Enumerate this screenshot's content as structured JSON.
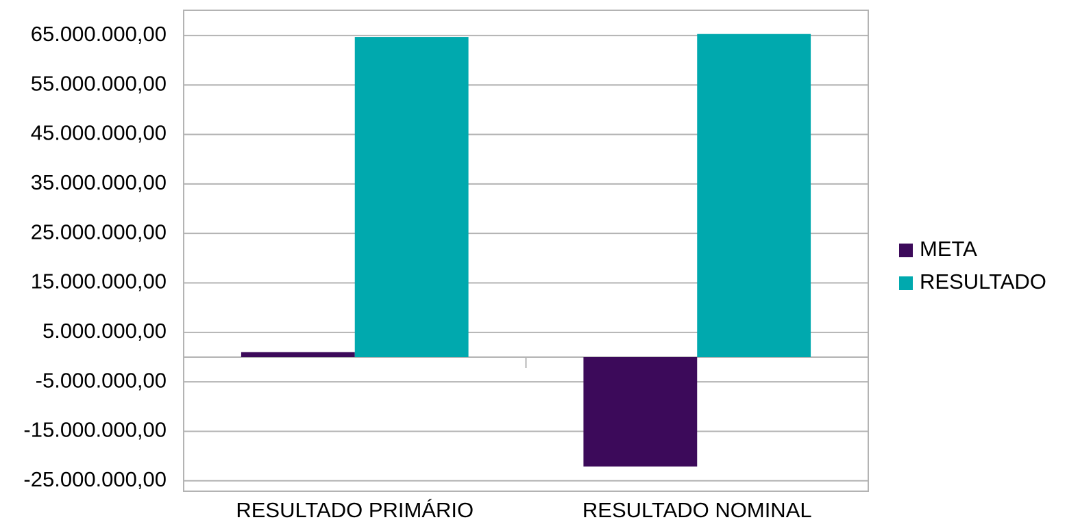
{
  "chart_data": {
    "type": "bar",
    "categories": [
      "RESULTADO PRIMÁRIO",
      "RESULTADO NOMINAL"
    ],
    "series": [
      {
        "name": "META",
        "color": "#3c0a5a",
        "values": [
          1000000,
          -22100000
        ]
      },
      {
        "name": "RESULTADO",
        "color": "#00a9ae",
        "values": [
          64700000,
          65300000
        ]
      }
    ],
    "ylim": [
      -27100000,
      70100000
    ],
    "yticks": [
      {
        "value": -25000000,
        "label": "-25.000.000,00"
      },
      {
        "value": -15000000,
        "label": "-15.000.000,00"
      },
      {
        "value": -5000000,
        "label": "-5.000.000,00"
      },
      {
        "value": 5000000,
        "label": "5.000.000,00"
      },
      {
        "value": 15000000,
        "label": "15.000.000,00"
      },
      {
        "value": 25000000,
        "label": "25.000.000,00"
      },
      {
        "value": 35000000,
        "label": "35.000.000,00"
      },
      {
        "value": 45000000,
        "label": "45.000.000,00"
      },
      {
        "value": 55000000,
        "label": "55.000.000,00"
      },
      {
        "value": 65000000,
        "label": "65.000.000,00"
      }
    ],
    "grid": true,
    "legend": "right"
  }
}
